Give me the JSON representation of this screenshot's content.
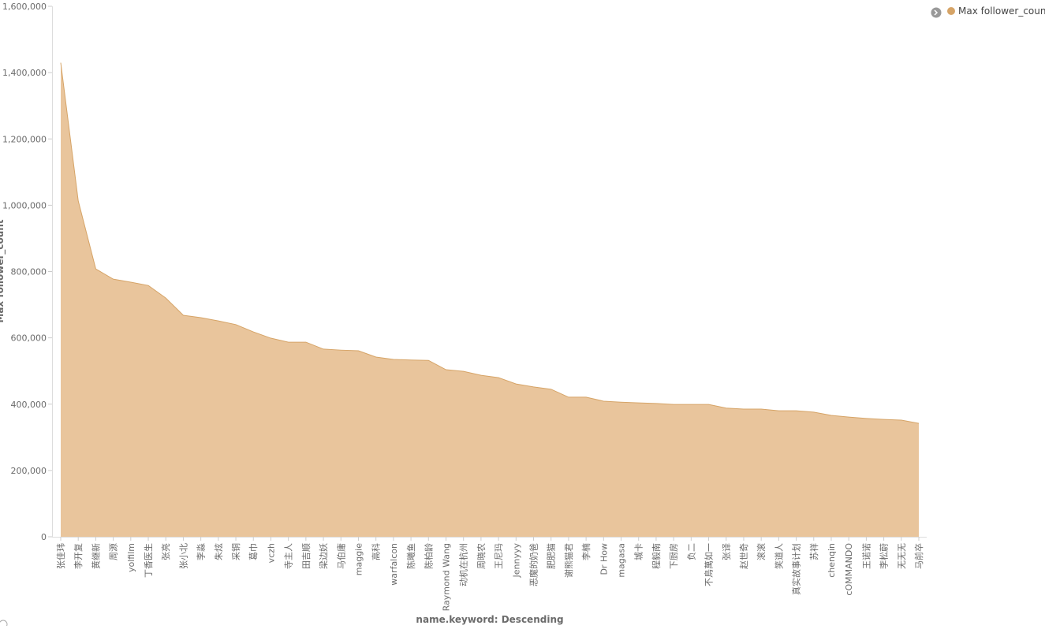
{
  "chart_data": {
    "type": "area",
    "y_axis_label": "Max follower_count",
    "x_axis_label": "name.keyword: Descending",
    "legend_position": "top-right",
    "grid": false,
    "categories": [
      "张佳玮",
      "李开复",
      "黄继新",
      "周源",
      "yolfilm",
      "丁香医生",
      "张亮",
      "张小北",
      "李淼",
      "朱炫",
      "采铜",
      "葛巾",
      "vczh",
      "寺主人",
      "田吉顺",
      "梁边妖",
      "马伯庸",
      "maggie",
      "高科",
      "warfalcon",
      "陈曦鱼",
      "陈柏龄",
      "Raymond Wang",
      "动机在杭州",
      "周晓农",
      "王尼玛",
      "Jennyyy",
      "恶魔的奶爸",
      "肥肥猫",
      "谢熊猫君",
      "李楠",
      "Dr How",
      "magasa",
      "城卡",
      "程毅南",
      "下厨房",
      "负二",
      "不鳥萬如一",
      "张译",
      "赵世奇",
      "滚滚",
      "笑道人",
      "真实故事计划",
      "苏祥",
      "chenqin",
      "cOMMANDO",
      "王诺诺",
      "李松蔚",
      "无无无",
      "马前卒"
    ],
    "series": [
      {
        "name": "Max follower_count",
        "color": "#e9c59c",
        "line_color": "#d6a467",
        "values": [
          1430000,
          1013000,
          808000,
          777000,
          768000,
          758000,
          720000,
          668000,
          661000,
          651000,
          640000,
          618000,
          599000,
          587000,
          587000,
          566000,
          563000,
          561000,
          542000,
          535000,
          533000,
          532000,
          504000,
          499000,
          487000,
          480000,
          461000,
          452000,
          445000,
          421000,
          421000,
          409000,
          406000,
          404000,
          402000,
          399000,
          399000,
          399000,
          388000,
          385000,
          385000,
          380000,
          380000,
          376000,
          366000,
          361000,
          357000,
          354000,
          352000,
          342000
        ]
      }
    ],
    "ylim": [
      0,
      1600000
    ],
    "yticks": [
      0,
      {
        "value": 200000,
        "label": "200,000"
      },
      {
        "value": 400000,
        "label": "400,000"
      },
      {
        "value": 600000,
        "label": "600,000"
      },
      {
        "value": 800000,
        "label": "800,000"
      },
      {
        "value": 1000000,
        "label": "1,000,000"
      },
      {
        "value": 1200000,
        "label": "1,200,000"
      },
      {
        "value": 1400000,
        "label": "1,400,000"
      },
      {
        "value": 1600000,
        "label": "1,600,000"
      }
    ]
  }
}
